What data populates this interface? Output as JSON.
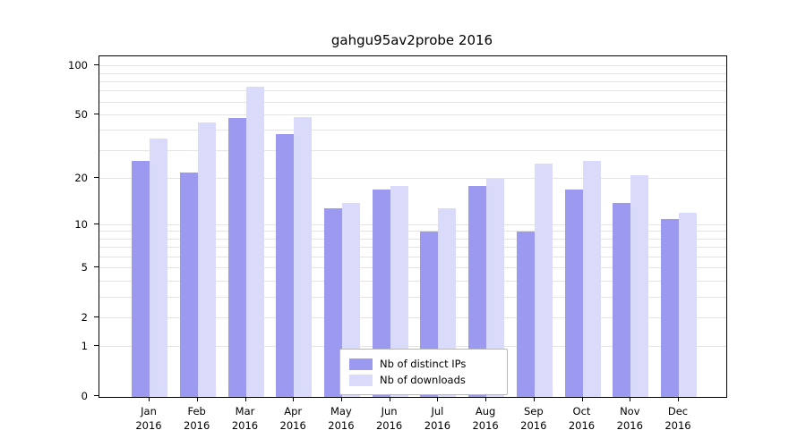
{
  "chart_data": {
    "type": "bar",
    "title": "gahgu95av2probe 2016",
    "scale": "log1p",
    "year": "2016",
    "categories": [
      "Jan",
      "Feb",
      "Mar",
      "Apr",
      "May",
      "Jun",
      "Jul",
      "Aug",
      "Sep",
      "Oct",
      "Nov",
      "Dec"
    ],
    "series": [
      {
        "name": "Nb of distinct IPs",
        "color": "#9b9af0",
        "values": [
          26,
          22,
          48,
          38,
          13,
          17,
          9,
          18,
          9,
          17,
          14,
          11
        ]
      },
      {
        "name": "Nb of downloads",
        "color": "#dadafa",
        "values": [
          36,
          45,
          75,
          49,
          14,
          18,
          13,
          20,
          25,
          26,
          21,
          12
        ]
      }
    ],
    "yticks": [
      0,
      1,
      2,
      5,
      10,
      20,
      50,
      100
    ],
    "gridlines": [
      1,
      2,
      3,
      4,
      5,
      6,
      7,
      8,
      9,
      10,
      20,
      30,
      40,
      50,
      60,
      70,
      80,
      90,
      100
    ],
    "ylim": [
      0,
      115
    ],
    "grid": true,
    "legend_position": "bottom-center"
  }
}
